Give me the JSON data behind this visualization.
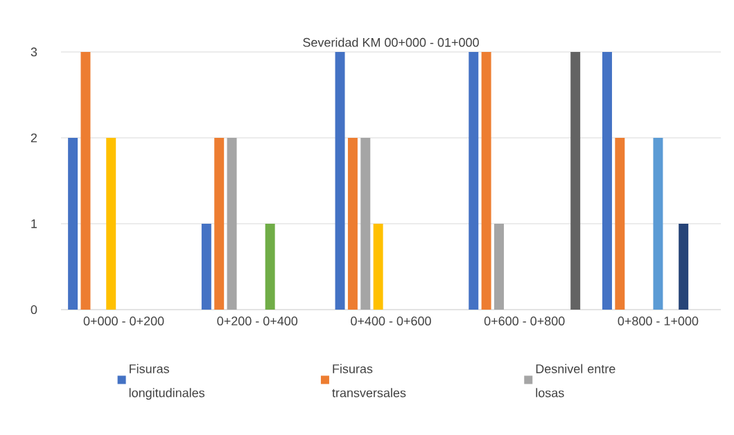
{
  "chart_data": {
    "type": "bar",
    "title": "Severidad KM 00+000 - 01+000",
    "categories": [
      "0+000 - 0+200",
      "0+200 - 0+400",
      "0+400 - 0+600",
      "0+600 - 0+800",
      "0+800 - 1+000"
    ],
    "series": [
      {
        "name": "Fisuras longitudinales",
        "color": "#4472c4",
        "values": [
          2,
          1,
          3,
          3,
          3
        ]
      },
      {
        "name": "Fisuras transversales",
        "color": "#ed7d31",
        "values": [
          3,
          2,
          2,
          3,
          2
        ]
      },
      {
        "name": "Desnivel entre losas",
        "color": "#a5a5a5",
        "values": [
          null,
          2,
          2,
          1,
          null
        ]
      },
      {
        "color": "#ffc000",
        "values": [
          2,
          null,
          1,
          null,
          null
        ]
      },
      {
        "color": "#5b9bd5",
        "values": [
          null,
          null,
          null,
          null,
          2
        ]
      },
      {
        "color": "#70ad47",
        "values": [
          null,
          1,
          null,
          null,
          null
        ]
      },
      {
        "color": "#264478",
        "values": [
          null,
          null,
          null,
          null,
          1
        ]
      },
      {
        "values": [
          null,
          null,
          null,
          null,
          null
        ]
      },
      {
        "color": "#636363",
        "values": [
          null,
          null,
          null,
          3,
          null
        ]
      }
    ],
    "ylim": [
      0,
      3
    ],
    "yticks": [
      0,
      1,
      2,
      3
    ],
    "grid": "y",
    "legend": "bottom"
  }
}
